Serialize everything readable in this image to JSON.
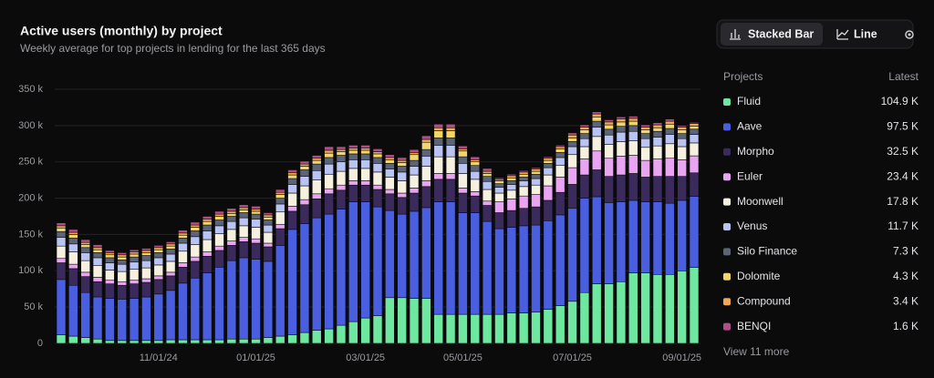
{
  "chart_data": {
    "type": "stacked_bar",
    "title": "Active users (monthly) by project",
    "subtitle": "Weekly average for top projects in lending for the last 365 days",
    "categories": [
      null,
      null,
      null,
      null,
      null,
      null,
      null,
      null,
      "11/01/24",
      null,
      null,
      null,
      null,
      null,
      null,
      null,
      "01/01/25",
      null,
      null,
      null,
      null,
      null,
      null,
      null,
      null,
      "03/01/25",
      null,
      null,
      null,
      null,
      null,
      null,
      null,
      "05/01/25",
      null,
      null,
      null,
      null,
      null,
      null,
      null,
      null,
      "07/01/25",
      null,
      null,
      null,
      null,
      null,
      null,
      null,
      null,
      "09/01/25",
      null
    ],
    "ylim": [
      0,
      350
    ],
    "yticks": [
      0,
      {
        "value": 50,
        "label": "50 k"
      },
      {
        "value": 100,
        "label": "100 k"
      },
      {
        "value": 150,
        "label": "150 k"
      },
      {
        "value": 200,
        "label": "200 k"
      },
      {
        "value": 250,
        "label": "250 k"
      },
      {
        "value": 300,
        "label": "300 k"
      },
      {
        "value": 350,
        "label": "350 k"
      }
    ],
    "grid": true,
    "legend_header": [
      "Projects",
      "Latest"
    ],
    "legend_more": "View 11 more",
    "series": [
      {
        "name": "Fluid",
        "color": "#6ee7a0",
        "latest": "104.9 K",
        "values": [
          12,
          10,
          8,
          6,
          4,
          4,
          4,
          4,
          4,
          5,
          5,
          5,
          5,
          5,
          6,
          6,
          6,
          8,
          10,
          12,
          15,
          18,
          20,
          25,
          30,
          35,
          38,
          63,
          63,
          62,
          62,
          40,
          40,
          40,
          40,
          40,
          40,
          42,
          42,
          43,
          47,
          52,
          58,
          70,
          82,
          82,
          85,
          97,
          97,
          95,
          95,
          100,
          104.9
        ]
      },
      {
        "name": "Aave",
        "color": "#4a5ee0",
        "latest": "97.5 K",
        "values": [
          76,
          70,
          62,
          58,
          58,
          57,
          58,
          60,
          64,
          68,
          78,
          85,
          92,
          100,
          108,
          112,
          110,
          105,
          125,
          145,
          150,
          155,
          158,
          160,
          165,
          160,
          150,
          120,
          115,
          120,
          125,
          155,
          155,
          140,
          140,
          128,
          118,
          118,
          120,
          120,
          122,
          125,
          128,
          130,
          120,
          112,
          110,
          100,
          98,
          100,
          98,
          97,
          97.5
        ]
      },
      {
        "name": "Morpho",
        "color": "#3a2b5c",
        "latest": "32.5 K",
        "values": [
          23,
          23,
          22,
          21,
          20,
          19,
          20,
          20,
          20,
          20,
          22,
          23,
          23,
          23,
          21,
          22,
          22,
          20,
          23,
          25,
          26,
          26,
          28,
          26,
          23,
          23,
          24,
          23,
          23,
          25,
          29,
          31,
          31,
          27,
          23,
          22,
          22,
          23,
          24,
          25,
          28,
          31,
          33,
          32,
          37,
          36,
          37,
          37,
          34,
          35,
          37,
          33,
          32.5
        ]
      },
      {
        "name": "Euler",
        "color": "#eaa5f2",
        "latest": "23.4 K",
        "values": [
          6,
          6,
          6,
          6,
          5,
          5,
          5,
          5,
          5,
          5,
          6,
          6,
          6,
          6,
          6,
          6,
          6,
          5,
          6,
          7,
          7,
          7,
          7,
          7,
          6,
          6,
          6,
          6,
          6,
          7,
          8,
          8,
          8,
          7,
          6,
          6,
          15,
          16,
          17,
          17,
          20,
          21,
          23,
          22,
          26,
          25,
          26,
          25,
          23,
          24,
          25,
          23,
          23.4
        ]
      },
      {
        "name": "Moonwell",
        "color": "#f6f1de",
        "latest": "17.8 K",
        "values": [
          17,
          17,
          16,
          16,
          14,
          14,
          15,
          15,
          15,
          15,
          16,
          17,
          17,
          17,
          16,
          16,
          16,
          15,
          17,
          18,
          19,
          19,
          20,
          19,
          17,
          17,
          18,
          17,
          17,
          18,
          20,
          23,
          23,
          20,
          17,
          16,
          12,
          12,
          13,
          13,
          15,
          16,
          18,
          17,
          20,
          19,
          20,
          20,
          18,
          18,
          20,
          18,
          17.8
        ]
      },
      {
        "name": "Venus",
        "color": "#b9c4f2",
        "latest": "11.7 K",
        "values": [
          12,
          11,
          11,
          11,
          10,
          10,
          10,
          10,
          10,
          10,
          11,
          11,
          12,
          11,
          11,
          11,
          11,
          10,
          11,
          12,
          13,
          13,
          14,
          13,
          12,
          12,
          12,
          11,
          12,
          12,
          14,
          16,
          16,
          14,
          11,
          11,
          8,
          8,
          8,
          9,
          10,
          11,
          11,
          11,
          13,
          13,
          13,
          13,
          12,
          12,
          13,
          11,
          11.7
        ]
      },
      {
        "name": "Silo Finance",
        "color": "#5c6478",
        "latest": "7.3 K",
        "values": [
          8,
          8,
          7,
          7,
          7,
          6,
          7,
          7,
          7,
          7,
          7,
          8,
          8,
          8,
          7,
          7,
          7,
          7,
          8,
          8,
          9,
          9,
          9,
          9,
          8,
          8,
          8,
          8,
          8,
          8,
          9,
          10,
          10,
          9,
          8,
          7,
          5,
          5,
          5,
          6,
          6,
          7,
          7,
          7,
          8,
          8,
          8,
          8,
          7,
          8,
          8,
          7,
          7.3
        ]
      },
      {
        "name": "Dolomite",
        "color": "#f2d66b",
        "latest": "4.3 K",
        "values": [
          5,
          5,
          4,
          4,
          4,
          4,
          4,
          4,
          4,
          4,
          4,
          5,
          5,
          5,
          4,
          4,
          4,
          4,
          5,
          5,
          5,
          5,
          6,
          5,
          5,
          5,
          5,
          5,
          5,
          8,
          10,
          10,
          10,
          8,
          5,
          4,
          4,
          4,
          4,
          4,
          4,
          5,
          5,
          5,
          6,
          6,
          6,
          6,
          5,
          5,
          6,
          5,
          4.3
        ]
      },
      {
        "name": "Compound",
        "color": "#f0a855",
        "latest": "3.4 K",
        "values": [
          3,
          3,
          3,
          3,
          3,
          3,
          3,
          3,
          3,
          3,
          3,
          3,
          3,
          3,
          3,
          3,
          3,
          3,
          3,
          3,
          3,
          3,
          4,
          3,
          3,
          3,
          3,
          3,
          3,
          3,
          4,
          4,
          4,
          3,
          3,
          3,
          2,
          3,
          3,
          3,
          3,
          3,
          4,
          4,
          4,
          4,
          4,
          4,
          4,
          4,
          4,
          4,
          3.4
        ]
      },
      {
        "name": "BENQI",
        "color": "#b04e86",
        "latest": "1.6 K",
        "values": [
          4,
          4,
          4,
          4,
          3,
          3,
          3,
          3,
          3,
          3,
          4,
          4,
          4,
          4,
          4,
          4,
          4,
          3,
          4,
          4,
          4,
          4,
          5,
          4,
          4,
          4,
          4,
          4,
          4,
          4,
          5,
          5,
          5,
          4,
          4,
          4,
          2,
          2,
          2,
          2,
          2,
          2,
          3,
          3,
          3,
          3,
          3,
          3,
          3,
          3,
          3,
          2,
          1.6
        ]
      }
    ]
  },
  "controls": {
    "views": [
      "Stacked Bar",
      "Line"
    ]
  }
}
